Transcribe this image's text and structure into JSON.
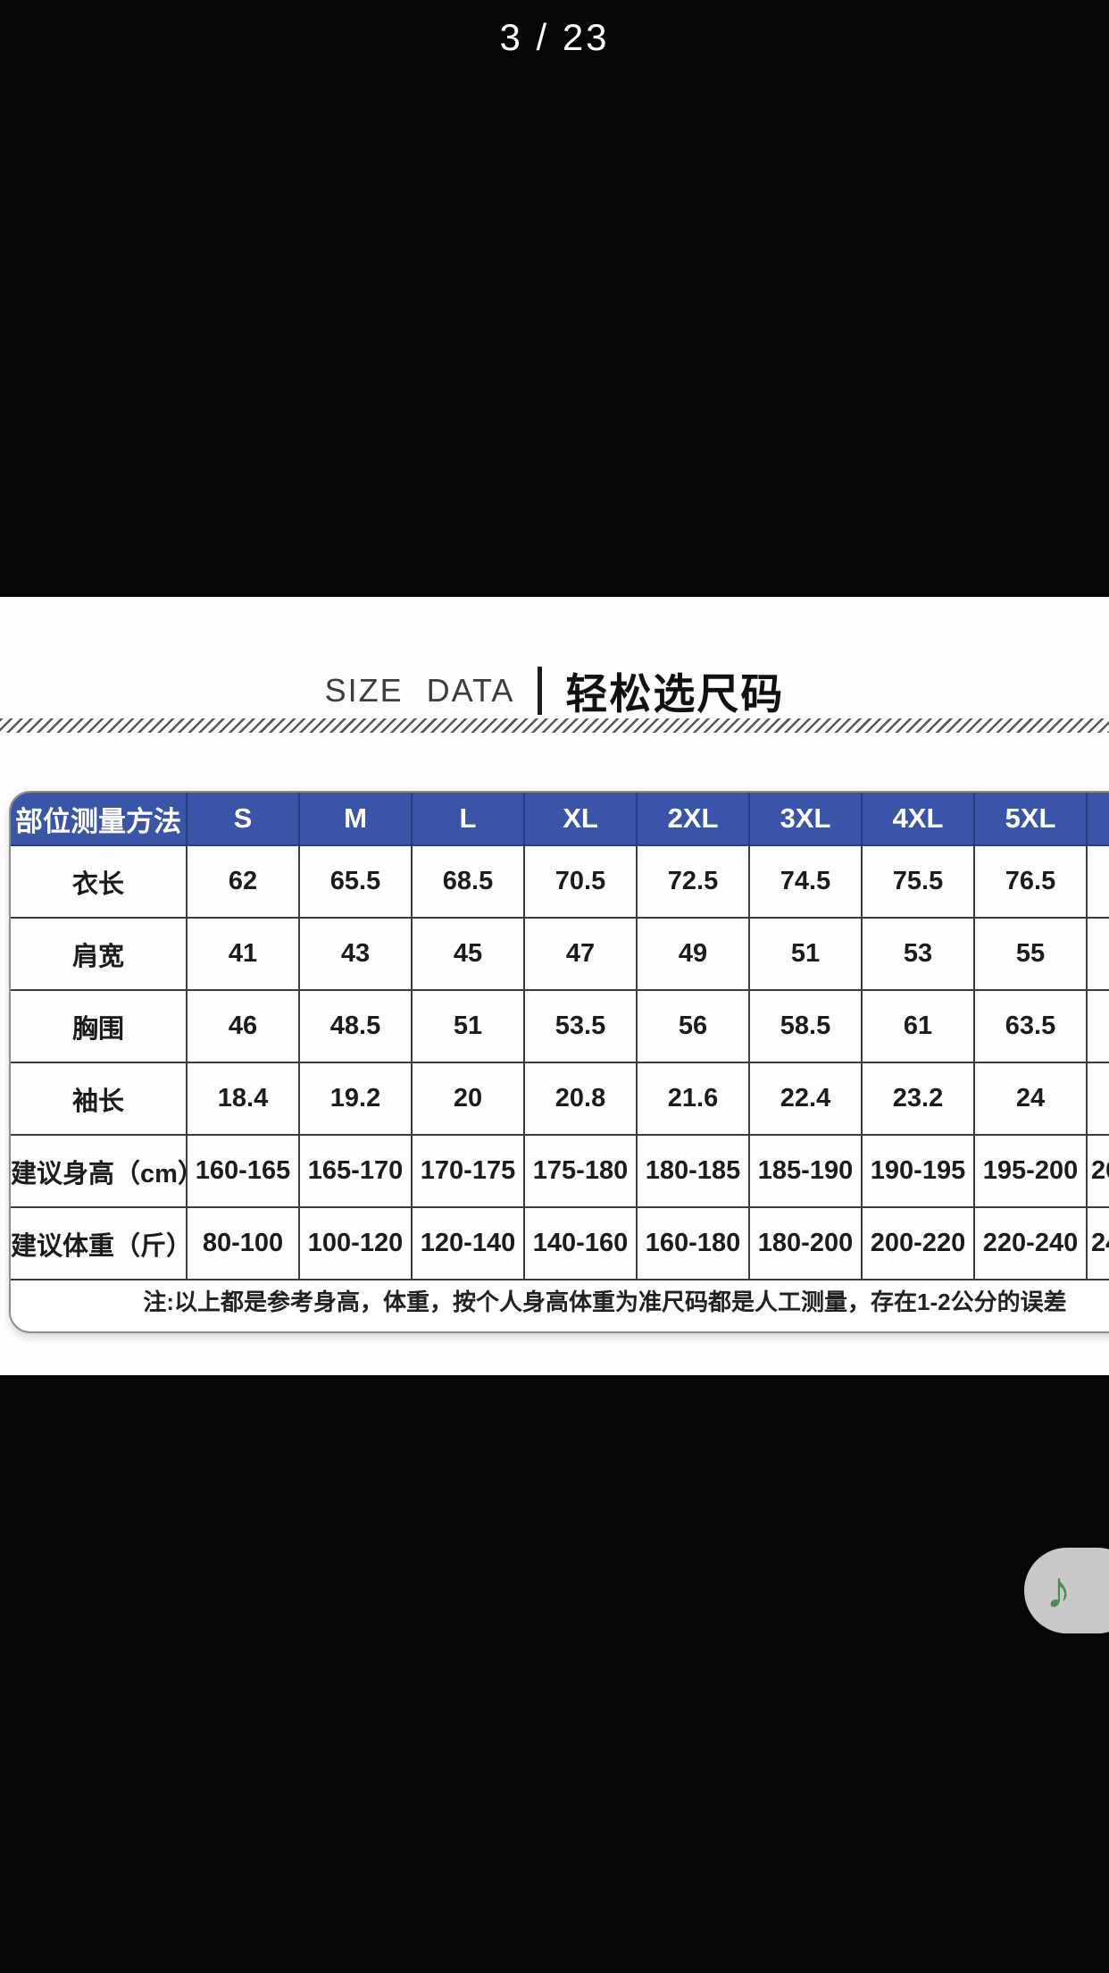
{
  "viewer": {
    "page_indicator": "3 / 23"
  },
  "section": {
    "title_en": "SIZE DATA",
    "title_zh": "轻松选尺码"
  },
  "size_table": {
    "header": [
      "部位测量方法",
      "S",
      "M",
      "L",
      "XL",
      "2XL",
      "3XL",
      "4XL",
      "5XL"
    ],
    "header_partial": "",
    "rows": [
      {
        "label": "衣长",
        "values": [
          "62",
          "65.5",
          "68.5",
          "70.5",
          "72.5",
          "74.5",
          "75.5",
          "76.5"
        ],
        "partial": ""
      },
      {
        "label": "肩宽",
        "values": [
          "41",
          "43",
          "45",
          "47",
          "49",
          "51",
          "53",
          "55"
        ],
        "partial": ""
      },
      {
        "label": "胸围",
        "values": [
          "46",
          "48.5",
          "51",
          "53.5",
          "56",
          "58.5",
          "61",
          "63.5"
        ],
        "partial": ""
      },
      {
        "label": "袖长",
        "values": [
          "18.4",
          "19.2",
          "20",
          "20.8",
          "21.6",
          "22.4",
          "23.2",
          "24"
        ],
        "partial": ""
      },
      {
        "label": "建议身高（cm）",
        "values": [
          "160-165",
          "165-170",
          "170-175",
          "175-180",
          "180-185",
          "185-190",
          "190-195",
          "195-200"
        ],
        "partial": "20"
      },
      {
        "label": "建议体重（斤）",
        "values": [
          "80-100",
          "100-120",
          "120-140",
          "140-160",
          "160-180",
          "180-200",
          "200-220",
          "220-240"
        ],
        "partial": "24"
      }
    ],
    "note": "注:以上都是参考身高，体重，按个人身高体重为准尺码都是人工测量，存在1-2公分的误差"
  },
  "music_button": {
    "glyph": "♪"
  },
  "colors": {
    "background": "#060606",
    "panel": "#fdfdfd",
    "header_blue": "#3a55a8",
    "header_divider": "#2b3d80",
    "grid_line": "#3c3c3c",
    "table_outline": "#8d8d8d",
    "music_pill_gray": "#c9c9c9",
    "music_note_green": "#4a8e52"
  }
}
